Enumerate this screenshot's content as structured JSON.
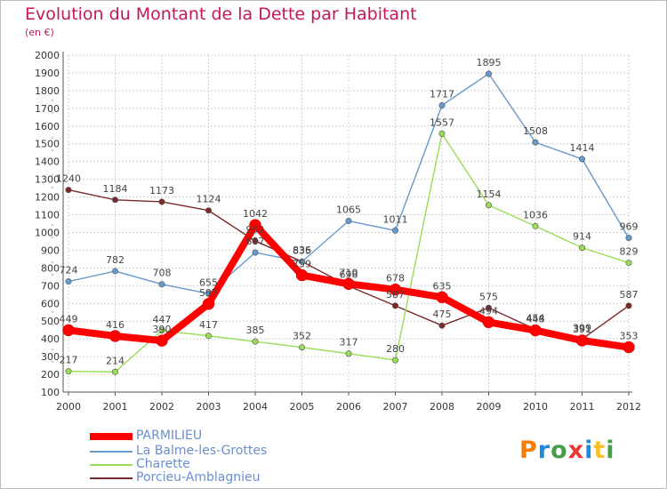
{
  "header": {
    "title": "Evolution du Montant de la Dette par Habitant",
    "subtitle": "(en €)"
  },
  "logo": {
    "letters": [
      "P",
      "r",
      "o",
      "x",
      "i",
      "t",
      "i"
    ],
    "colors": [
      "#f57c00",
      "#1e88e5",
      "#43a047",
      "#e53935",
      "#1e88e5",
      "#fbc02d",
      "#43a047"
    ]
  },
  "chart_data": {
    "type": "line",
    "x": [
      "2000",
      "2001",
      "2002",
      "2003",
      "2004",
      "2005",
      "2006",
      "2007",
      "2008",
      "2009",
      "2010",
      "2011",
      "2012"
    ],
    "ylim": [
      100,
      2000
    ],
    "yticks": [
      100,
      200,
      300,
      400,
      500,
      600,
      700,
      800,
      900,
      1000,
      1100,
      1200,
      1300,
      1400,
      1500,
      1600,
      1700,
      1800,
      1900,
      2000
    ],
    "grid": true,
    "legend": "bottom-left",
    "series": [
      {
        "name": "PARMILIEU",
        "color": "#ff0000",
        "values": [
          449,
          416,
          390,
          597,
          1042,
          759,
          710,
          678,
          635,
          494,
          448,
          391,
          353
        ],
        "labels": [
          "449",
          "416",
          "390",
          "597",
          "1042",
          "759",
          "710",
          "678",
          "635",
          "494",
          "448",
          "391",
          "353"
        ]
      },
      {
        "name": "La Balme-les-Grottes",
        "color": "#6699cc",
        "values": [
          724,
          782,
          708,
          655,
          887,
          835,
          1065,
          1011,
          1717,
          1895,
          1508,
          1414,
          969
        ],
        "labels": [
          "724",
          "782",
          "708",
          "655",
          "887",
          "835",
          "1065",
          "1011",
          "1717",
          "1895",
          "1508",
          "1414",
          "969"
        ]
      },
      {
        "name": "Charette",
        "color": "#99dd55",
        "values": [
          217,
          214,
          447,
          417,
          385,
          352,
          317,
          280,
          1557,
          1154,
          1036,
          914,
          829
        ],
        "labels": [
          "217",
          "214",
          "447",
          "417",
          "385",
          "352",
          "317",
          "280",
          "1557",
          "1154",
          "1036",
          "914",
          "829"
        ]
      },
      {
        "name": "Porcieu-Amblagnieu",
        "color": "#7a2a2a",
        "values": [
          1240,
          1184,
          1173,
          1124,
          952,
          836,
          698,
          587,
          475,
          575,
          454,
          399,
          587
        ],
        "labels": [
          "1240",
          "1184",
          "1173",
          "1124",
          "952",
          "836",
          "698",
          "587",
          "475",
          "575",
          "454",
          "399",
          "587"
        ]
      }
    ]
  }
}
